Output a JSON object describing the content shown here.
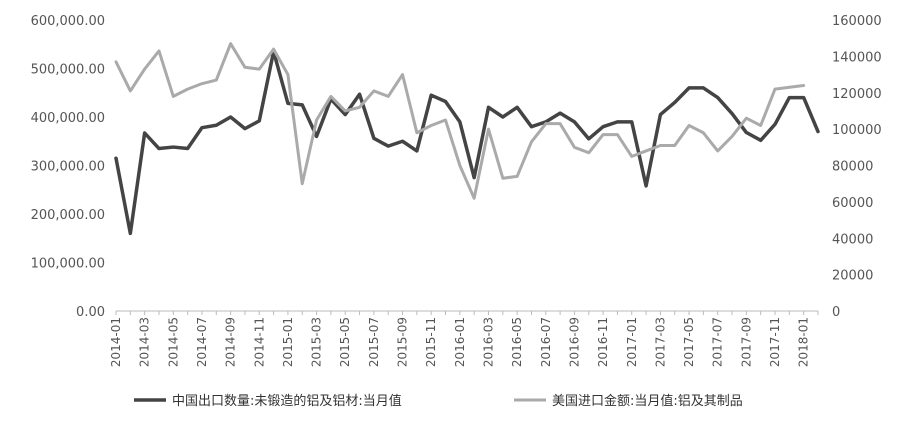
{
  "chart_data": {
    "type": "line",
    "title": "",
    "xlabel": "",
    "ylabel": "",
    "x": [
      "2014-01",
      "2014-02",
      "2014-03",
      "2014-04",
      "2014-05",
      "2014-06",
      "2014-07",
      "2014-08",
      "2014-09",
      "2014-10",
      "2014-11",
      "2014-12",
      "2015-01",
      "2015-02",
      "2015-03",
      "2015-04",
      "2015-05",
      "2015-06",
      "2015-07",
      "2015-08",
      "2015-09",
      "2015-10",
      "2015-11",
      "2015-12",
      "2016-01",
      "2016-02",
      "2016-03",
      "2016-04",
      "2016-05",
      "2016-06",
      "2016-07",
      "2016-08",
      "2016-09",
      "2016-10",
      "2016-11",
      "2016-12",
      "2017-01",
      "2017-02",
      "2017-03",
      "2017-04",
      "2017-05",
      "2017-06",
      "2017-07",
      "2017-08",
      "2017-09",
      "2017-10",
      "2017-11",
      "2017-12",
      "2018-01",
      "2018-02"
    ],
    "x_tick_labels": [
      "2014-01",
      "2014-03",
      "2014-05",
      "2014-07",
      "2014-09",
      "2014-11",
      "2015-01",
      "2015-03",
      "2015-05",
      "2015-07",
      "2015-09",
      "2015-11",
      "2016-01",
      "2016-03",
      "2016-05",
      "2016-07",
      "2016-09",
      "2016-11",
      "2017-01",
      "2017-03",
      "2017-05",
      "2017-07",
      "2017-09",
      "2017-11",
      "2018-01"
    ],
    "y_left_ticks": [
      "600,000.00",
      "500,000.00",
      "400,000.00",
      "300,000.00",
      "200,000.00",
      "100,000.00",
      "0.00"
    ],
    "y_right_ticks": [
      "160000",
      "140000",
      "120000",
      "100000",
      "80000",
      "60000",
      "40000",
      "20000",
      "0"
    ],
    "y_left_lim": [
      0,
      600000
    ],
    "y_right_lim": [
      0,
      160000
    ],
    "grid": false,
    "legend_position": "bottom",
    "series": [
      {
        "name": "中国出口数量:未锻造的铝及铝材:当月值",
        "axis": "left",
        "color": "#444444",
        "values": [
          315000,
          160000,
          367000,
          335000,
          338000,
          335000,
          378000,
          383000,
          400000,
          376000,
          392000,
          535000,
          428000,
          425000,
          360000,
          437000,
          405000,
          447000,
          356000,
          340000,
          350000,
          330000,
          445000,
          432000,
          390000,
          275000,
          420000,
          400000,
          420000,
          380000,
          390000,
          408000,
          390000,
          355000,
          380000,
          390000,
          390000,
          258000,
          405000,
          430000,
          460000,
          460000,
          440000,
          407000,
          368000,
          352000,
          385000,
          440000,
          440000,
          370000
        ]
      },
      {
        "name": "美国进口金额:当月值:铝及其制品",
        "axis": "right",
        "color": "#aaaaaa",
        "values": [
          137000,
          121000,
          133000,
          143000,
          118000,
          122000,
          125000,
          127000,
          147000,
          134000,
          133000,
          144000,
          130000,
          70000,
          105000,
          118000,
          110000,
          112000,
          121000,
          118000,
          130000,
          98000,
          102000,
          105000,
          80000,
          62000,
          100000,
          73000,
          74000,
          93000,
          103000,
          103000,
          90000,
          87000,
          97000,
          97000,
          85000,
          88000,
          91000,
          91000,
          102000,
          98000,
          88000,
          96000,
          106000,
          102000,
          122000,
          123000,
          124000,
          null
        ]
      }
    ]
  }
}
